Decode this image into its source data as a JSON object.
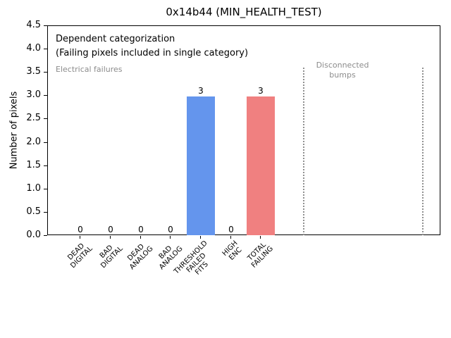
{
  "chart_data": {
    "type": "bar",
    "title": "0x14b44 (MIN_HEALTH_TEST)",
    "ylabel": "Number of pixels",
    "xlabel": "",
    "ylim": [
      0,
      4.5
    ],
    "grid": false,
    "legend_position": "none",
    "categories": [
      "DEAD\nDIGITAL",
      "BAD\nDIGITAL",
      "DEAD\nANALOG",
      "BAD\nANALOG",
      "THRESHOLD\nFAILED\nFITS",
      "HIGH\nENC",
      "TOTAL\nFAILING"
    ],
    "values": [
      0,
      0,
      0,
      0,
      3,
      0,
      3
    ],
    "value_labels": [
      "0",
      "0",
      "0",
      "0",
      "3",
      "0",
      "3"
    ],
    "bar_colors": [
      "#6495ed",
      "#6495ed",
      "#6495ed",
      "#6495ed",
      "#6495ed",
      "#6495ed",
      "#f08080"
    ],
    "ytick_labels": [
      "4.5",
      "4.0",
      "3.5",
      "3.0",
      "2.5",
      "2.0",
      "1.5",
      "1.0",
      "0.5",
      "0.0"
    ],
    "annotations": {
      "dependent": "Dependent categorization\n(Failing pixels included in single category)",
      "electrical_group": "Electrical failures",
      "disconnected_group": "Disconnected\nbumps"
    },
    "colors": {
      "bar_blue": "#6495ed",
      "bar_red": "#f08080",
      "annotation_gray": "#8c8c8c",
      "divider_gray": "#909090"
    }
  }
}
